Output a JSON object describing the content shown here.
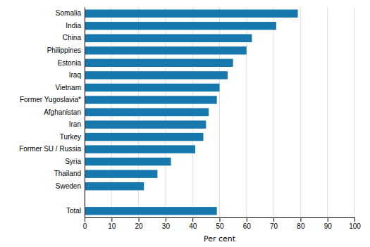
{
  "chart_data": {
    "type": "bar",
    "orientation": "horizontal",
    "categories": [
      "Total",
      null,
      "Sweden",
      "Thailand",
      "Syria",
      "Former SU / Russia",
      "Turkey",
      "Iran",
      "Afghanistan",
      "Former Yugoslavia*",
      "Vietnam",
      "Iraq",
      "Estonia",
      "Philippines",
      "China",
      "India",
      "Somalia"
    ],
    "values": [
      49,
      null,
      22,
      27,
      32,
      41,
      44,
      45,
      46,
      49,
      50,
      53,
      55,
      60,
      62,
      71,
      79
    ],
    "color": "#1778ad",
    "xlabel": "Per cent",
    "xlim": [
      0,
      100
    ],
    "xticks": [
      0,
      10,
      20,
      30,
      40,
      50,
      60,
      70,
      80,
      90,
      100
    ],
    "grid": true
  }
}
